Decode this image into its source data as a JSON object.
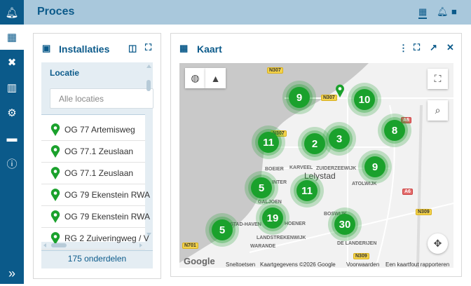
{
  "header": {
    "title": "Proces",
    "icons": [
      "map-icon",
      "bell-icon",
      "note-icon"
    ]
  },
  "sidebar": {
    "items": [
      "bell-icon",
      "map-icon",
      "tools-icon",
      "chart-icon",
      "gear-icon",
      "toolbox-icon",
      "info-icon"
    ],
    "expand": "»"
  },
  "installaties": {
    "title": "Installaties",
    "filter_label": "Locatie",
    "filter_placeholder": "Alle locaties",
    "items": [
      "OG 77 Artemisweg",
      "OG 77.1 Zeuslaan",
      "OG 77.1 Zeuslaan",
      "OG 79 Ekenstein RWA",
      "OG 79 Ekenstein RWA",
      "RG 2 Zuiveringweg / V"
    ],
    "count": "175 onderdelen"
  },
  "kaart": {
    "title": "Kaart",
    "clusters": [
      "9",
      "10",
      "8",
      "11",
      "2",
      "3",
      "9",
      "5",
      "11",
      "19",
      "30",
      "5"
    ],
    "roads": [
      "N307",
      "N307",
      "N307",
      "A6",
      "A6",
      "N309",
      "N701",
      "N309"
    ],
    "places": [
      "BOEIER",
      "KARVEEL",
      "ZUIDERZEEWIJK",
      "Lelystad",
      "ATOLWIJK",
      "INTER",
      "GALJOEN",
      "HOENER",
      "BOSWIJK",
      "STAD-HAVEN",
      "LANDSTREKENWIJK",
      "WARANDE",
      "DE LANDERIJEN"
    ],
    "footer": {
      "logo": "Google",
      "shortcuts": "Sneltoetsen",
      "data": "Kaartgegevens ©2026 Google",
      "terms": "Voorwaarden",
      "report": "Een kaartfout rapporteren"
    }
  },
  "colors": {
    "primary": "#0b5a8a",
    "header": "#a9c8dc",
    "marker": "#1aa12c"
  }
}
